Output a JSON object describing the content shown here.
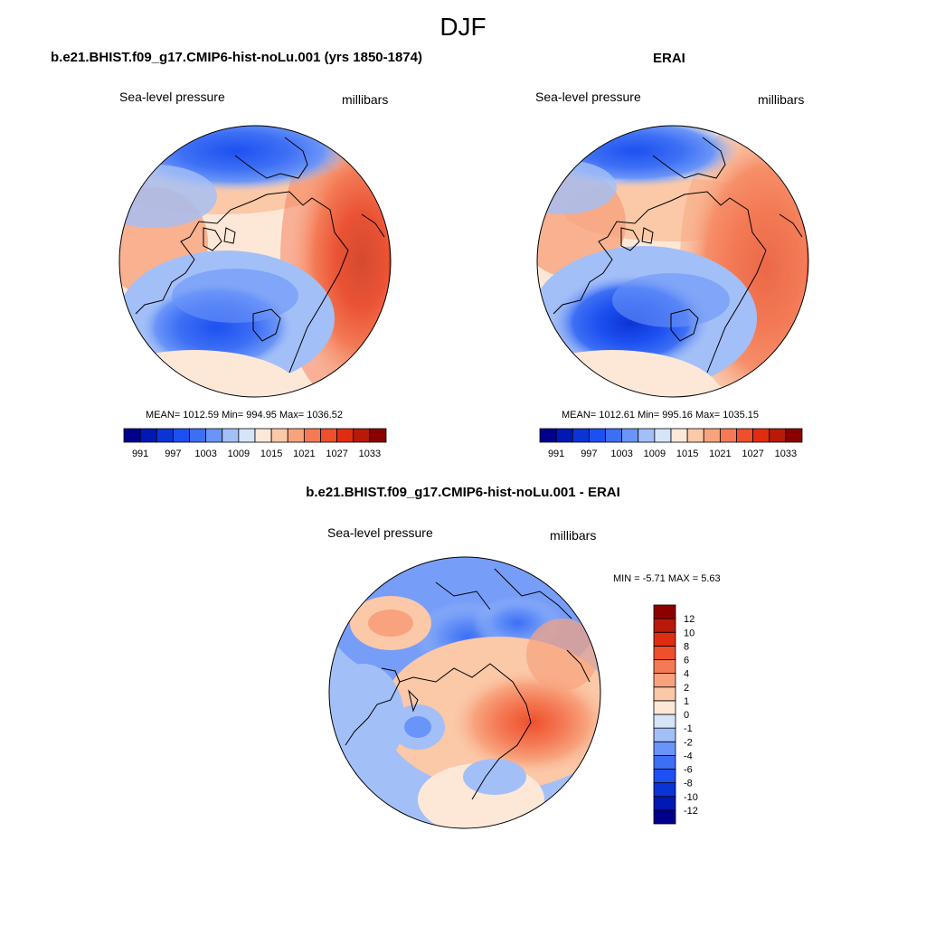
{
  "figure": {
    "title": "DJF"
  },
  "panels": [
    {
      "title": "b.e21.BHIST.f09_g17.CMIP6-hist-noLu.001 (yrs 1850-1874)",
      "variable": "Sea-level pressure",
      "units": "millibars",
      "stats": "MEAN= 1012.59  Min= 994.95  Max= 1036.52"
    },
    {
      "title": "ERAI",
      "variable": "Sea-level pressure",
      "units": "millibars",
      "stats": "MEAN= 1012.61  Min= 995.16  Max= 1035.15"
    },
    {
      "title": "b.e21.BHIST.f09_g17.CMIP6-hist-noLu.001 - ERAI",
      "variable": "Sea-level pressure",
      "units": "millibars",
      "stats": "MIN =  -5.71 MAX =   5.63"
    }
  ],
  "colorbars": {
    "slp": {
      "colors": [
        "#00008c",
        "#0018b4",
        "#0b34d6",
        "#1d50f0",
        "#3d6ff5",
        "#6a95f8",
        "#a3bff8",
        "#d6e4f8",
        "#fde8d8",
        "#fbc8a8",
        "#f8a37e",
        "#f47a55",
        "#ee4f2c",
        "#e02d12",
        "#b81908",
        "#8c0000"
      ],
      "ticks": [
        "991",
        "997",
        "1003",
        "1009",
        "1015",
        "1021",
        "1027",
        "1033"
      ]
    },
    "diff": {
      "colors": [
        "#00008c",
        "#0018b4",
        "#0b34d6",
        "#1d50f0",
        "#3d6ff5",
        "#6a95f8",
        "#a3bff8",
        "#d6e4f8",
        "#fde8d8",
        "#fbc8a8",
        "#f8a37e",
        "#f47a55",
        "#ee4f2c",
        "#e02d12",
        "#b81908",
        "#8c0000"
      ],
      "ticks": [
        "-12",
        "-10",
        "-8",
        "-6",
        "-4",
        "-2",
        "-1",
        "0",
        "1",
        "2",
        "4",
        "6",
        "8",
        "10",
        "12"
      ]
    }
  }
}
